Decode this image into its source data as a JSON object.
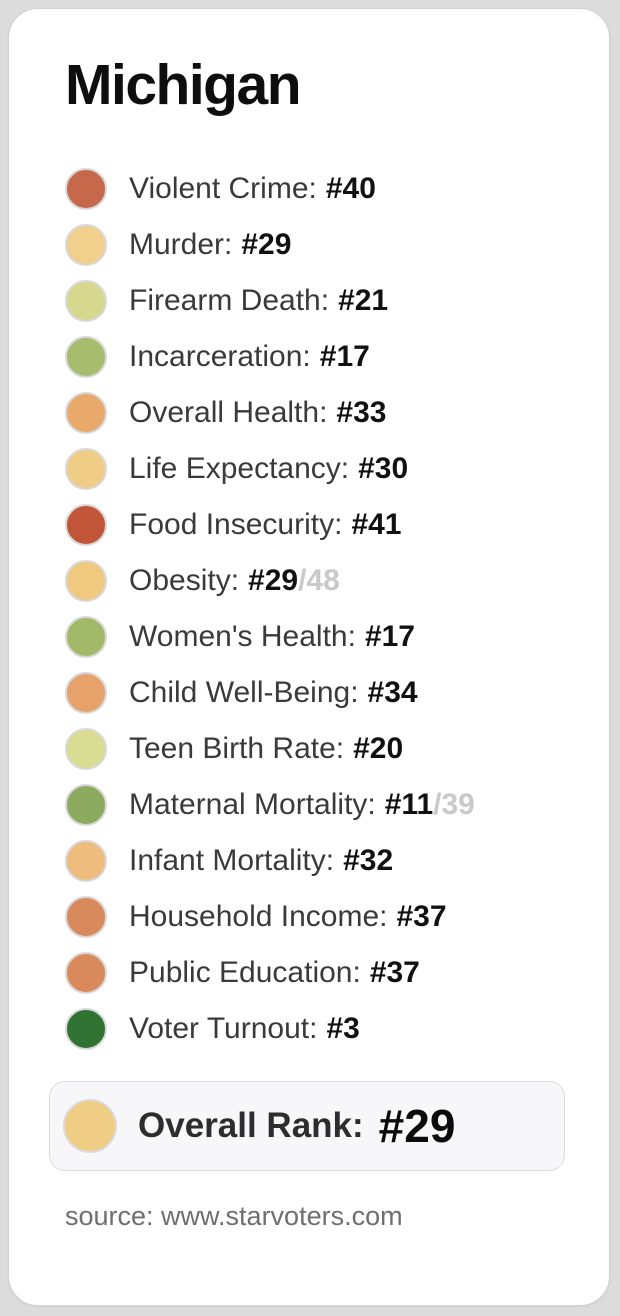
{
  "page": {
    "title": "Michigan",
    "source": "source: www.starvoters.com"
  },
  "metrics": [
    {
      "label": "Violent Crime:",
      "rank": "#40",
      "rank_total": "",
      "color": "#c7684a"
    },
    {
      "label": "Murder:",
      "rank": "#29",
      "rank_total": "",
      "color": "#f0d08a"
    },
    {
      "label": "Firearm Death:",
      "rank": "#21",
      "rank_total": "",
      "color": "#d6d98d"
    },
    {
      "label": "Incarceration:",
      "rank": "#17",
      "rank_total": "",
      "color": "#a8bc6e"
    },
    {
      "label": "Overall Health:",
      "rank": "#33",
      "rank_total": "",
      "color": "#e8a96a"
    },
    {
      "label": "Life Expectancy:",
      "rank": "#30",
      "rank_total": "",
      "color": "#f0cd85"
    },
    {
      "label": "Food Insecurity:",
      "rank": "#41",
      "rank_total": "",
      "color": "#c25437"
    },
    {
      "label": "Obesity:",
      "rank": "#29",
      "rank_total": "/48",
      "color": "#efc97e"
    },
    {
      "label": "Women's Health:",
      "rank": "#17",
      "rank_total": "",
      "color": "#a2b96a"
    },
    {
      "label": "Child Well-Being:",
      "rank": "#34",
      "rank_total": "",
      "color": "#e7a269"
    },
    {
      "label": "Teen Birth Rate:",
      "rank": "#20",
      "rank_total": "",
      "color": "#d9dc93"
    },
    {
      "label": "Maternal Mortality:",
      "rank": "#11",
      "rank_total": "/39",
      "color": "#8cab5e"
    },
    {
      "label": "Infant Mortality:",
      "rank": "#32",
      "rank_total": "",
      "color": "#eebd7e"
    },
    {
      "label": "Household Income:",
      "rank": "#37",
      "rank_total": "",
      "color": "#d98a5c"
    },
    {
      "label": "Public Education:",
      "rank": "#37",
      "rank_total": "",
      "color": "#d98a5c"
    },
    {
      "label": "Voter Turnout:",
      "rank": "#3",
      "rank_total": "",
      "color": "#2f7232"
    }
  ],
  "overall": {
    "label": "Overall Rank:",
    "rank": "#29",
    "color": "#f0cd84"
  },
  "chart_data": {
    "type": "table",
    "title": "Michigan",
    "categories": [
      "Violent Crime",
      "Murder",
      "Firearm Death",
      "Incarceration",
      "Overall Health",
      "Life Expectancy",
      "Food Insecurity",
      "Obesity",
      "Women's Health",
      "Child Well-Being",
      "Teen Birth Rate",
      "Maternal Mortality",
      "Infant Mortality",
      "Household Income",
      "Public Education",
      "Voter Turnout"
    ],
    "values": [
      40,
      29,
      21,
      17,
      33,
      30,
      41,
      29,
      17,
      34,
      20,
      11,
      32,
      37,
      37,
      3
    ],
    "out_of": {
      "Obesity": 48,
      "Maternal Mortality": 39
    },
    "overall_rank": 29,
    "source": "source: www.starvoters.com",
    "dot_colors": [
      "#c7684a",
      "#f0d08a",
      "#d6d98d",
      "#a8bc6e",
      "#e8a96a",
      "#f0cd85",
      "#c25437",
      "#efc97e",
      "#a2b96a",
      "#e7a269",
      "#d9dc93",
      "#8cab5e",
      "#eebd7e",
      "#d98a5c",
      "#d98a5c",
      "#2f7232"
    ]
  }
}
